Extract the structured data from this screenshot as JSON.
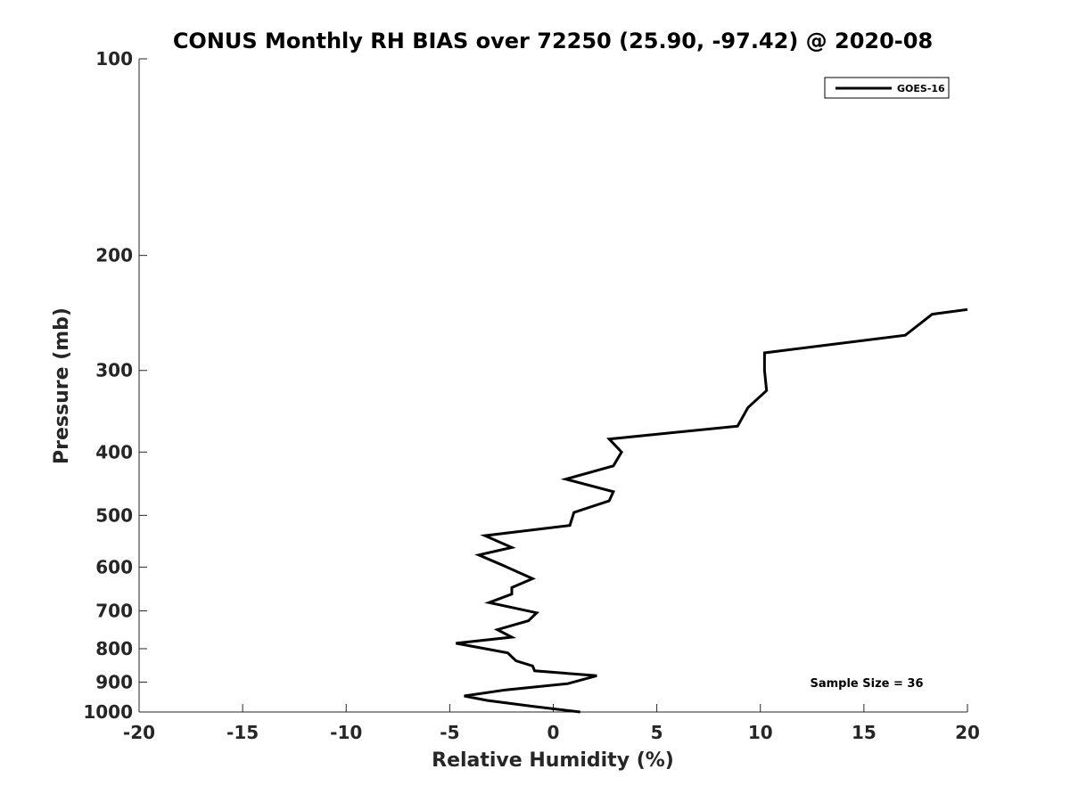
{
  "chart_data": {
    "type": "line",
    "title": "CONUS Monthly RH BIAS over 72250 (25.90, -97.42) @ 2020-08",
    "xlabel": "Relative Humidity (%)",
    "ylabel": "Pressure (mb)",
    "xlim": [
      -20,
      20
    ],
    "ylim": [
      1000,
      100
    ],
    "y_scale": "log",
    "x_ticks": [
      -20,
      -15,
      -10,
      -5,
      0,
      5,
      10,
      15,
      20
    ],
    "y_ticks": [
      100,
      200,
      300,
      400,
      500,
      600,
      700,
      800,
      900,
      1000
    ],
    "grid": false,
    "legend_position": "top-right",
    "annotation": "Sample Size = 36",
    "series": [
      {
        "name": "GOES-16",
        "color": "#000000",
        "points": [
          {
            "x": 1.3,
            "y": 1000
          },
          {
            "x": -1.0,
            "y": 980
          },
          {
            "x": -3.2,
            "y": 960
          },
          {
            "x": -4.3,
            "y": 945
          },
          {
            "x": -2.3,
            "y": 925
          },
          {
            "x": 0.7,
            "y": 905
          },
          {
            "x": 2.1,
            "y": 880
          },
          {
            "x": -0.9,
            "y": 865
          },
          {
            "x": -1.0,
            "y": 850
          },
          {
            "x": -1.8,
            "y": 835
          },
          {
            "x": -2.2,
            "y": 812
          },
          {
            "x": -4.7,
            "y": 785
          },
          {
            "x": -2.0,
            "y": 768
          },
          {
            "x": -2.7,
            "y": 748
          },
          {
            "x": -1.2,
            "y": 725
          },
          {
            "x": -0.8,
            "y": 705
          },
          {
            "x": -3.1,
            "y": 680
          },
          {
            "x": -2.0,
            "y": 660
          },
          {
            "x": -2.0,
            "y": 645
          },
          {
            "x": -1.0,
            "y": 625
          },
          {
            "x": -2.4,
            "y": 597
          },
          {
            "x": -3.6,
            "y": 575
          },
          {
            "x": -2.0,
            "y": 560
          },
          {
            "x": -3.3,
            "y": 537
          },
          {
            "x": 0.8,
            "y": 518
          },
          {
            "x": 1.0,
            "y": 495
          },
          {
            "x": 2.7,
            "y": 475
          },
          {
            "x": 2.9,
            "y": 460
          },
          {
            "x": 0.6,
            "y": 440
          },
          {
            "x": 2.9,
            "y": 420
          },
          {
            "x": 3.3,
            "y": 400
          },
          {
            "x": 2.7,
            "y": 382
          },
          {
            "x": 8.9,
            "y": 365
          },
          {
            "x": 9.4,
            "y": 342
          },
          {
            "x": 10.3,
            "y": 322
          },
          {
            "x": 10.2,
            "y": 300
          },
          {
            "x": 10.2,
            "y": 282
          },
          {
            "x": 17.0,
            "y": 265
          },
          {
            "x": 18.3,
            "y": 246
          },
          {
            "x": 20.0,
            "y": 242
          }
        ]
      }
    ]
  }
}
